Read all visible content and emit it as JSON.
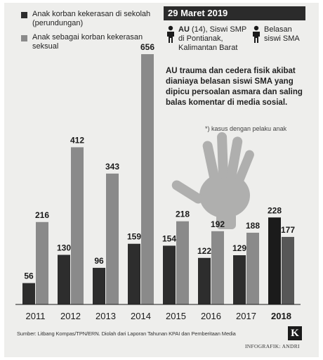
{
  "legend": {
    "items": [
      {
        "label": "Anak korban kekerasan di sekolah (perundungan)",
        "color": "#2d2d2d"
      },
      {
        "label": "Anak sebagai korban kekerasan seksual",
        "color": "#8a8a8a"
      }
    ]
  },
  "highlight": {
    "date": "29 Maret 2019",
    "victim_name": "AU",
    "victim_detail": "(14), Siswi SMP di Pontianak, Kalimantan Barat",
    "perpetrators": "Belasan siswi SMA",
    "description": "AU trauma dan cedera fisik akibat dianiaya belasan siswi SMA yang dipicu persoalan asmara dan saling balas komentar di media sosial.",
    "note": "*) kasus dengan pelaku anak"
  },
  "chart_data": {
    "type": "bar",
    "categories": [
      "2011",
      "2012",
      "2013",
      "2014",
      "2015",
      "2016",
      "2017",
      "2018"
    ],
    "series": [
      {
        "name": "Anak korban kekerasan di sekolah (perundungan)",
        "values": [
          56,
          130,
          96,
          159,
          154,
          122,
          129,
          228
        ],
        "color": "#2d2d2d"
      },
      {
        "name": "Anak sebagai korban kekerasan seksual",
        "values": [
          216,
          412,
          343,
          656,
          218,
          192,
          188,
          177
        ],
        "color": "#8a8a8a"
      }
    ],
    "highlight_category": "2018",
    "highlight_colors": [
      "#1b1b1b",
      "#575757"
    ],
    "ylim": [
      0,
      680
    ]
  },
  "footer": {
    "source": "Sumber: Litbang Kompas/TPN/ERN. Diolah dari Laporan Tahunan KPAI dan Pemberitaan Media",
    "credit": "INFOGRAFIK: ANDRI",
    "logo": "K"
  }
}
